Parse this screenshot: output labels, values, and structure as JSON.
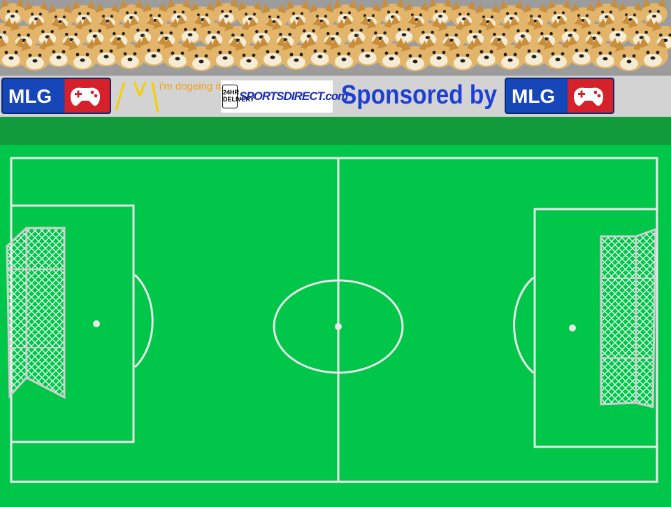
{
  "crowd": {
    "icon": "doge-crowd-icon",
    "background": "#9c9c9c"
  },
  "banner": {
    "logo_left": {
      "text": "MLG",
      "icon": "controller-icon"
    },
    "slashes": {
      "text": "/ V \\",
      "color": "#f5d000"
    },
    "dogeing_text": "i'm dogeing it",
    "sportsdirect": {
      "badge": "24HR DELIVERY",
      "text": "SPORTSDIRECT.com"
    },
    "sponsored_text": "Sponsored by",
    "logo_right": {
      "text": "MLG",
      "icon": "controller-icon"
    }
  },
  "pitch": {
    "grass_color": "#00c74a",
    "line_color": "#e8e8e8",
    "left_goal_icon": "goal-net-icon",
    "right_goal_icon": "goal-net-icon"
  }
}
